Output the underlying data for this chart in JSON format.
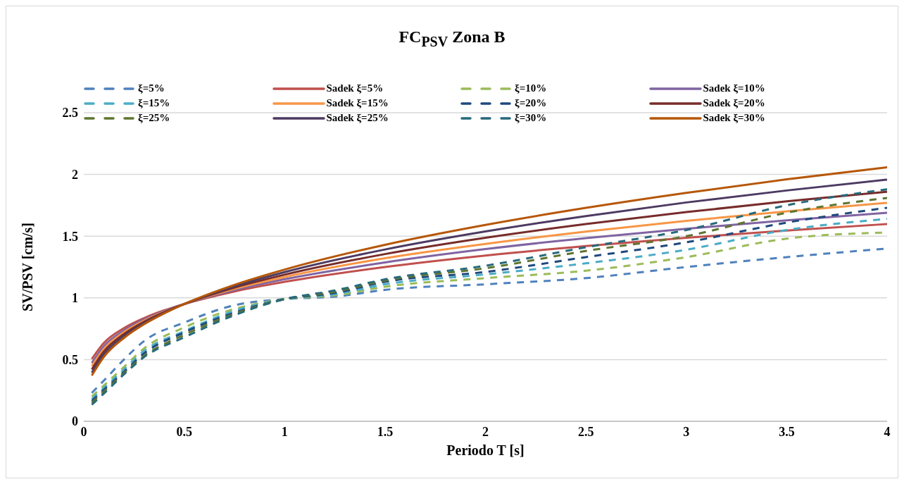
{
  "chart_data": {
    "type": "line",
    "title": "FC$_{PSV}$ Zona B",
    "xlabel": "Periodo T [s]",
    "ylabel": "SV/PSV [cm/s]",
    "xlim": [
      0,
      4
    ],
    "xticks": [
      0,
      0.5,
      1,
      1.5,
      2,
      2.5,
      3,
      3.5,
      4
    ],
    "ylim": [
      0,
      2.5
    ],
    "yticks": [
      0,
      0.5,
      1,
      1.5,
      2,
      2.5
    ],
    "grid": "y",
    "legend": "top",
    "marker": "none",
    "series": [
      {
        "name": "ξ=5%",
        "color": "#4f81bd",
        "line_style": "dashed",
        "x": [
          0.04,
          0.1,
          0.2,
          0.3,
          0.5,
          0.75,
          1,
          1.25,
          1.5,
          2,
          2.5,
          3,
          3.5,
          4
        ],
        "values": [
          0.23,
          0.33,
          0.5,
          0.65,
          0.8,
          0.94,
          0.99,
          1.01,
          1.065,
          1.11,
          1.16,
          1.25,
          1.33,
          1.4
        ]
      },
      {
        "name": "Sadek ξ=5%",
        "color": "#c0504d",
        "line_style": "solid",
        "x": [
          0.04,
          0.1,
          0.2,
          0.3,
          0.4,
          0.5,
          0.75,
          1,
          1.5,
          2,
          2.5,
          3,
          3.5,
          4
        ],
        "values": [
          0.505,
          0.635,
          0.755,
          0.836,
          0.899,
          0.95,
          1.052,
          1.13,
          1.25,
          1.343,
          1.42,
          1.487,
          1.545,
          1.598
        ]
      },
      {
        "name": "ξ=10%",
        "color": "#9bbb59",
        "line_style": "dashed",
        "x": [
          0.04,
          0.1,
          0.2,
          0.3,
          0.5,
          0.75,
          1,
          1.25,
          1.5,
          2,
          2.5,
          3,
          3.5,
          4
        ],
        "values": [
          0.2,
          0.29,
          0.44,
          0.59,
          0.76,
          0.91,
          0.99,
          1.02,
          1.09,
          1.16,
          1.22,
          1.33,
          1.48,
          1.53
        ]
      },
      {
        "name": "Sadek ξ=10%",
        "color": "#8064a2",
        "line_style": "solid",
        "x": [
          0.04,
          0.1,
          0.2,
          0.3,
          0.4,
          0.5,
          0.75,
          1,
          1.5,
          2,
          2.5,
          3,
          3.5,
          4
        ],
        "values": [
          0.472,
          0.608,
          0.737,
          0.825,
          0.893,
          0.95,
          1.063,
          1.151,
          1.287,
          1.395,
          1.484,
          1.56,
          1.628,
          1.69
        ]
      },
      {
        "name": "ξ=15%",
        "color": "#4bacc6",
        "line_style": "dashed",
        "x": [
          0.04,
          0.1,
          0.2,
          0.3,
          0.5,
          0.75,
          1,
          1.25,
          1.5,
          2,
          2.5,
          3,
          3.5,
          4
        ],
        "values": [
          0.18,
          0.27,
          0.42,
          0.57,
          0.73,
          0.895,
          0.99,
          1.03,
          1.11,
          1.19,
          1.28,
          1.39,
          1.55,
          1.64
        ]
      },
      {
        "name": "Sadek ξ=15%",
        "color": "#f79646",
        "line_style": "solid",
        "x": [
          0.04,
          0.1,
          0.2,
          0.3,
          0.4,
          0.5,
          0.75,
          1,
          1.5,
          2,
          2.5,
          3,
          3.5,
          4
        ],
        "values": [
          0.447,
          0.587,
          0.722,
          0.815,
          0.888,
          0.95,
          1.073,
          1.169,
          1.321,
          1.437,
          1.537,
          1.624,
          1.701,
          1.77
        ]
      },
      {
        "name": "ξ=20%",
        "color": "#1f497d",
        "line_style": "dashed",
        "x": [
          0.04,
          0.1,
          0.2,
          0.3,
          0.5,
          0.75,
          1,
          1.25,
          1.5,
          2,
          2.5,
          3,
          3.5,
          4
        ],
        "values": [
          0.165,
          0.255,
          0.4,
          0.55,
          0.72,
          0.88,
          0.99,
          1.04,
          1.13,
          1.21,
          1.33,
          1.45,
          1.61,
          1.73
        ]
      },
      {
        "name": "Sadek ξ=20%",
        "color": "#772c2a",
        "line_style": "solid",
        "x": [
          0.04,
          0.1,
          0.2,
          0.3,
          0.4,
          0.5,
          0.75,
          1,
          1.5,
          2,
          2.5,
          3,
          3.5,
          4
        ],
        "values": [
          0.42,
          0.565,
          0.707,
          0.806,
          0.884,
          0.95,
          1.083,
          1.188,
          1.355,
          1.487,
          1.598,
          1.695,
          1.782,
          1.86
        ]
      },
      {
        "name": "ξ=25%",
        "color": "#5f7530",
        "line_style": "dashed",
        "x": [
          0.04,
          0.1,
          0.2,
          0.3,
          0.5,
          0.75,
          1,
          1.25,
          1.5,
          2,
          2.5,
          3,
          3.5,
          4
        ],
        "values": [
          0.15,
          0.24,
          0.39,
          0.53,
          0.7,
          0.87,
          0.99,
          1.05,
          1.14,
          1.24,
          1.38,
          1.5,
          1.69,
          1.81
        ]
      },
      {
        "name": "Sadek ξ=25%",
        "color": "#4d3b62",
        "line_style": "solid",
        "x": [
          0.04,
          0.1,
          0.2,
          0.3,
          0.4,
          0.5,
          0.75,
          1,
          1.5,
          2,
          2.5,
          3,
          3.5,
          4
        ],
        "values": [
          0.394,
          0.542,
          0.691,
          0.795,
          0.879,
          0.95,
          1.094,
          1.209,
          1.392,
          1.538,
          1.663,
          1.773,
          1.87,
          1.958
        ]
      },
      {
        "name": "ξ=30%",
        "color": "#276a7c",
        "line_style": "dashed",
        "x": [
          0.04,
          0.1,
          0.2,
          0.3,
          0.5,
          0.75,
          1,
          1.25,
          1.5,
          2,
          2.5,
          3,
          3.5,
          4
        ],
        "values": [
          0.135,
          0.225,
          0.38,
          0.52,
          0.68,
          0.86,
          0.99,
          1.06,
          1.15,
          1.26,
          1.41,
          1.55,
          1.75,
          1.88
        ]
      },
      {
        "name": "Sadek ξ=30%",
        "color": "#b65708",
        "line_style": "solid",
        "x": [
          0.04,
          0.1,
          0.2,
          0.3,
          0.4,
          0.5,
          0.75,
          1,
          1.5,
          2,
          2.5,
          3,
          3.5,
          4
        ],
        "values": [
          0.371,
          0.522,
          0.675,
          0.786,
          0.874,
          0.95,
          1.105,
          1.229,
          1.43,
          1.591,
          1.729,
          1.851,
          1.96,
          2.058
        ]
      }
    ]
  }
}
